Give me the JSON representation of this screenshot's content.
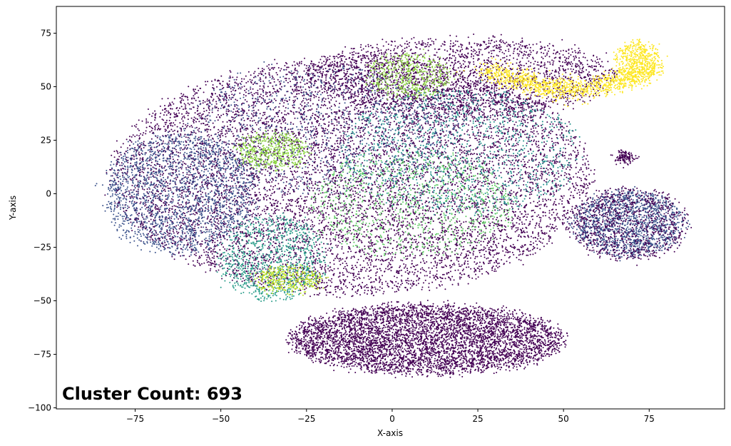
{
  "chart_data": {
    "type": "scatter",
    "title": "",
    "xlabel": "X-axis",
    "ylabel": "Y-axis",
    "xlim": [
      -98,
      97
    ],
    "ylim": [
      -100.5,
      87.5
    ],
    "x_ticks": [
      -75,
      -50,
      -25,
      0,
      25,
      50,
      75
    ],
    "y_ticks": [
      -100,
      -75,
      -50,
      -25,
      0,
      25,
      50,
      75
    ],
    "x_tick_labels": [
      "−75",
      "−50",
      "−25",
      "0",
      "25",
      "50",
      "75"
    ],
    "y_tick_labels": [
      "−100",
      "−75",
      "−50",
      "−25",
      "0",
      "25",
      "50",
      "75"
    ],
    "grid": false,
    "legend": "none",
    "colormap": "viridis",
    "palette": [
      "#440154",
      "#3b528b",
      "#21918c",
      "#2a9d8a",
      "#5ec962",
      "#8fd744",
      "#bddf26",
      "#fde725"
    ],
    "annotation": "Cluster Count: 693",
    "groups": [
      {
        "name": "",
        "color_index": 0,
        "count": 5200,
        "shape": "blob",
        "cx": 10,
        "cy": -68,
        "rx": 40,
        "ry": 16
      },
      {
        "name": "",
        "color_index": 1,
        "count": 1400,
        "shape": "blob",
        "cx": 69,
        "cy": -14,
        "rx": 16,
        "ry": 15
      },
      {
        "name": "",
        "color_index": 0,
        "count": 900,
        "shape": "blob",
        "cx": 69,
        "cy": -14,
        "rx": 17,
        "ry": 17
      },
      {
        "name": "",
        "color_index": 0,
        "count": 9000,
        "shape": "blob",
        "cx": -12,
        "cy": 8,
        "rx": 70,
        "ry": 55
      },
      {
        "name": "",
        "color_index": 0,
        "count": 2200,
        "shape": "blob",
        "cx": 20,
        "cy": 55,
        "rx": 45,
        "ry": 18
      },
      {
        "name": "",
        "color_index": 1,
        "count": 1800,
        "shape": "blob",
        "cx": -62,
        "cy": 0,
        "rx": 22,
        "ry": 28
      },
      {
        "name": "",
        "color_index": 1,
        "count": 900,
        "shape": "blob",
        "cx": -20,
        "cy": 30,
        "rx": 40,
        "ry": 30
      },
      {
        "name": "",
        "color_index": 2,
        "count": 1100,
        "shape": "blob",
        "cx": 20,
        "cy": 20,
        "rx": 35,
        "ry": 30
      },
      {
        "name": "",
        "color_index": 3,
        "count": 900,
        "shape": "blob",
        "cx": -35,
        "cy": -30,
        "rx": 15,
        "ry": 20
      },
      {
        "name": "",
        "color_index": 4,
        "count": 900,
        "shape": "blob",
        "cx": 5,
        "cy": -5,
        "rx": 30,
        "ry": 25
      },
      {
        "name": "",
        "color_index": 5,
        "count": 500,
        "shape": "blob",
        "cx": -35,
        "cy": 20,
        "rx": 10,
        "ry": 8
      },
      {
        "name": "",
        "color_index": 6,
        "count": 350,
        "shape": "blob",
        "cx": -30,
        "cy": -40,
        "rx": 10,
        "ry": 6
      },
      {
        "name": "",
        "color_index": 7,
        "count": 1100,
        "shape": "arc",
        "cx": 52,
        "cy": 58,
        "rx": 24,
        "ry": 9
      },
      {
        "name": "",
        "color_index": 7,
        "count": 500,
        "shape": "blob",
        "cx": 72,
        "cy": 62,
        "rx": 6,
        "ry": 9
      },
      {
        "name": "",
        "color_index": 5,
        "count": 500,
        "shape": "blob",
        "cx": 5,
        "cy": 55,
        "rx": 12,
        "ry": 10
      },
      {
        "name": "",
        "color_index": 0,
        "count": 120,
        "shape": "blob",
        "cx": 68,
        "cy": 17,
        "rx": 2,
        "ry": 2
      }
    ]
  }
}
